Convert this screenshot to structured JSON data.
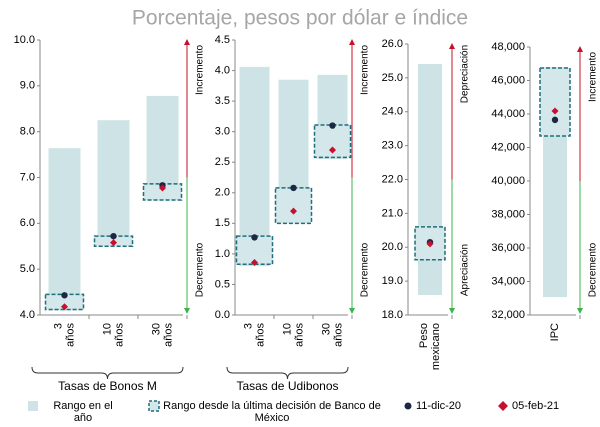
{
  "title": "Porcentaje, pesos por dólar e índice",
  "chart_data": [
    {
      "type": "range-dot",
      "categories": [
        "3 años",
        "10 años",
        "30 años"
      ],
      "xlabel": "Tasas de Bonos M",
      "ylim": [
        4,
        10
      ],
      "yticks": [
        {
          "value": 4,
          "label": "4.0"
        },
        {
          "value": 5,
          "label": "5.0"
        },
        {
          "value": 6,
          "label": "6.0"
        },
        {
          "value": 7,
          "label": "7.0"
        },
        {
          "value": 8,
          "label": "8.0"
        },
        {
          "value": 9,
          "label": "9.0"
        },
        {
          "value": 10,
          "label": "10.0"
        }
      ],
      "annotations": {
        "up": "Incremento",
        "down": "Decremento"
      },
      "series": [
        {
          "name": "Rango en el año",
          "color": "#cde3e6",
          "low": [
            4.1,
            5.5,
            6.5
          ],
          "high": [
            7.64,
            8.25,
            8.78
          ]
        },
        {
          "name": "Rango desde la última decisión de Banco de México",
          "color": "#1f6f7a",
          "low": [
            4.12,
            5.5,
            6.51
          ],
          "high": [
            4.45,
            5.72,
            6.86
          ]
        },
        {
          "name": "11-dic-20",
          "color": "#1c2841",
          "values": [
            4.43,
            5.72,
            6.83
          ]
        },
        {
          "name": "05-feb-21",
          "color": "#c8102e",
          "values": [
            4.18,
            5.58,
            6.77
          ]
        }
      ]
    },
    {
      "type": "range-dot",
      "categories": [
        "3 años",
        "10 años",
        "30 años"
      ],
      "xlabel": "Tasas de Udibonos",
      "ylim": [
        0,
        4.5
      ],
      "yticks": [
        {
          "value": 0,
          "label": "0.0"
        },
        0.5,
        {
          "value": 1,
          "label": "1.0"
        },
        1.5,
        {
          "value": 2,
          "label": "2.0"
        },
        2.5,
        {
          "value": 3,
          "label": "3.0"
        },
        3.5,
        {
          "value": 4,
          "label": "4.0"
        },
        4.5
      ],
      "annotations": {
        "up": "Incremento",
        "down": "Decremento"
      },
      "series": [
        {
          "color": "#cde3e6",
          "low": [
            0.8,
            1.5,
            2.55
          ],
          "high": [
            4.06,
            3.85,
            3.93
          ]
        },
        {
          "color": "#1f6f7a",
          "low": [
            0.83,
            1.5,
            2.58
          ],
          "high": [
            1.29,
            2.08,
            3.11
          ]
        },
        {
          "color": "#1c2841",
          "values": [
            1.27,
            2.08,
            3.1
          ]
        },
        {
          "color": "#c8102e",
          "values": [
            0.86,
            1.7,
            2.7
          ]
        }
      ]
    },
    {
      "type": "range-dot",
      "categories": [
        "Peso mexicano"
      ],
      "ylim": [
        18,
        26
      ],
      "yticks": [
        {
          "value": 18,
          "label": "18.0"
        },
        {
          "value": 19,
          "label": "19.0"
        },
        {
          "value": 20,
          "label": "20.0"
        },
        {
          "value": 21,
          "label": "21.0"
        },
        {
          "value": 22,
          "label": "22.0"
        },
        {
          "value": 23,
          "label": "23.0"
        },
        {
          "value": 24,
          "label": "24.0"
        },
        {
          "value": 25,
          "label": "25.0"
        },
        {
          "value": 26,
          "label": "26.0"
        }
      ],
      "annotations": {
        "up": "Depreciación",
        "down": "Apreciación"
      },
      "series": [
        {
          "color": "#cde3e6",
          "low": [
            18.59
          ],
          "high": [
            25.41
          ]
        },
        {
          "color": "#1f6f7a",
          "low": [
            19.63
          ],
          "high": [
            20.6
          ]
        },
        {
          "color": "#1c2841",
          "values": [
            20.15
          ]
        },
        {
          "color": "#c8102e",
          "values": [
            20.1
          ]
        }
      ]
    },
    {
      "type": "range-dot",
      "categories": [
        "IPC"
      ],
      "ylim": [
        32000,
        48000
      ],
      "yticks": [
        {
          "value": 32000,
          "label": "32,000"
        },
        {
          "value": 34000,
          "label": "34,000"
        },
        {
          "value": 36000,
          "label": "36,000"
        },
        {
          "value": 38000,
          "label": "38,000"
        },
        {
          "value": 40000,
          "label": "40,000"
        },
        {
          "value": 42000,
          "label": "42,000"
        },
        {
          "value": 44000,
          "label": "44,000"
        },
        {
          "value": 46000,
          "label": "46,000"
        },
        {
          "value": 48000,
          "label": "48,000"
        }
      ],
      "annotations": {
        "up": "Incremento",
        "down": "Decremento"
      },
      "series": [
        {
          "color": "#cde3e6",
          "low": [
            33070
          ],
          "high": [
            46800
          ]
        },
        {
          "color": "#1f6f7a",
          "low": [
            42690
          ],
          "high": [
            46750
          ]
        },
        {
          "color": "#1c2841",
          "values": [
            43650
          ]
        },
        {
          "color": "#c8102e",
          "values": [
            44180
          ]
        }
      ]
    }
  ]
}
